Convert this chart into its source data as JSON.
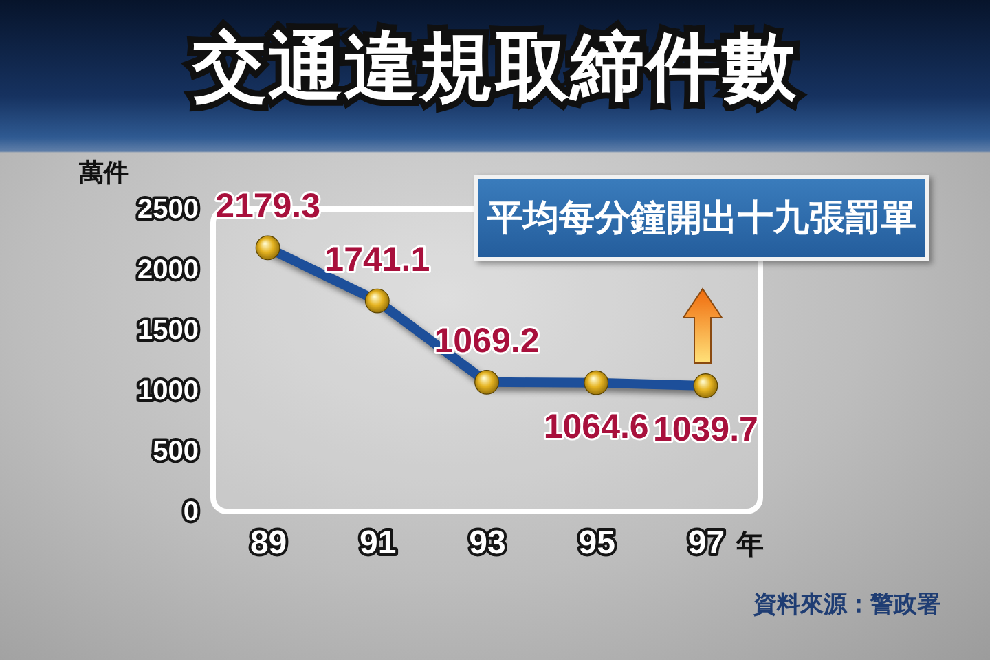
{
  "chart_data": {
    "type": "line",
    "title": "交通違規取締件數",
    "ylabel": "萬件",
    "xlabel": "年",
    "categories": [
      "89",
      "91",
      "93",
      "95",
      "97"
    ],
    "series": [
      {
        "color": "#1d4f9a",
        "values": [
          2179.3,
          1741.1,
          1069.2,
          1064.6,
          1039.7
        ]
      }
    ],
    "ylim": [
      0,
      2500
    ],
    "yticks": [
      0,
      500,
      1000,
      1500,
      2000,
      2500
    ],
    "data_labels": true,
    "marker": "circle",
    "annotations": [
      "平均每分鐘開出十九張罰單",
      "資料來源：警政署"
    ]
  }
}
